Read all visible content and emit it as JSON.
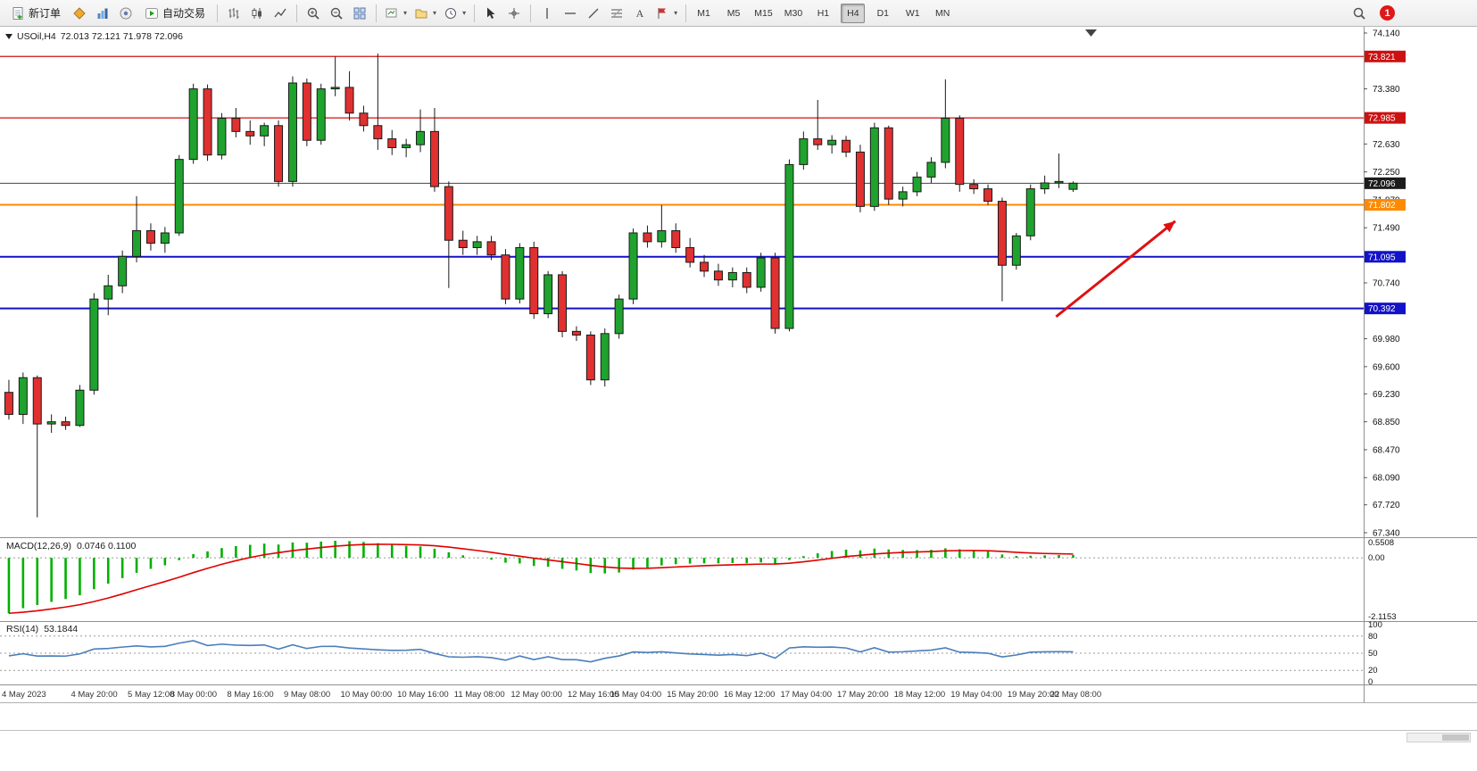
{
  "toolbar": {
    "new_order_label": "新订单",
    "auto_trading_label": "自动交易",
    "timeframes": [
      "M1",
      "M5",
      "M15",
      "M30",
      "H1",
      "H4",
      "D1",
      "W1",
      "MN"
    ],
    "active_timeframe": "H4",
    "notification_count": "1",
    "icon_names": [
      "new-order",
      "diamond",
      "charts",
      "help",
      "auto-trading-play",
      "bar-chart",
      "candlestick-chart",
      "line-chart",
      "zoom-in",
      "zoom-out",
      "tile-windows",
      "new-chart",
      "templates",
      "period",
      "cursor-arrow",
      "crosshair",
      "vertical-line",
      "horizontal-line",
      "trendline",
      "fibonacci",
      "text-tool",
      "arrows-tool",
      "search",
      "notification"
    ]
  },
  "chart_header": {
    "symbol": "USOil,H4",
    "ohlc": "72.013 72.121 71.978 72.096"
  },
  "price_axis": {
    "ticks": [
      "74.140",
      "73.380",
      "72.630",
      "72.250",
      "71.870",
      "71.490",
      "70.740",
      "69.980",
      "69.600",
      "69.230",
      "68.850",
      "68.470",
      "68.090",
      "67.720",
      "67.340"
    ],
    "tags": [
      {
        "price": 73.821,
        "label": "73.821",
        "color": "#cc1111",
        "line_color": "#d01010",
        "line_width": 1.2
      },
      {
        "price": 72.985,
        "label": "72.985",
        "color": "#cc1111",
        "line_color": "#d01010",
        "line_width": 1.2
      },
      {
        "price": 72.096,
        "label": "72.096",
        "color": "#1c1c1c",
        "line_color": "#444444",
        "line_width": 1
      },
      {
        "price": 71.802,
        "label": "71.802",
        "color": "#ff8a00",
        "line_color": "#ff8a00",
        "line_width": 2
      },
      {
        "price": 71.095,
        "label": "71.095",
        "color": "#1212c8",
        "line_color": "#1212c8",
        "line_width": 2
      },
      {
        "price": 70.392,
        "label": "70.392",
        "color": "#1212c8",
        "line_color": "#1212c8",
        "line_width": 2
      }
    ]
  },
  "macd_panel": {
    "name": "MACD(12,26,9)",
    "values": "0.0746 0.1100",
    "axis_labels": [
      "0.5508",
      "0.00",
      "-2.1153"
    ]
  },
  "rsi_panel": {
    "name": "RSI(14)",
    "value": "53.1844",
    "axis_labels": [
      "100",
      "80",
      "50",
      "20",
      "0"
    ]
  },
  "chart_data": {
    "type": "candlestick",
    "symbol": "USOil",
    "timeframe": "H4",
    "title": "USOil,H4",
    "price_range": [
      67.34,
      74.14
    ],
    "ohlc": [
      [
        69.25,
        69.42,
        68.88,
        68.95
      ],
      [
        68.95,
        69.52,
        68.82,
        69.45
      ],
      [
        69.45,
        69.48,
        67.55,
        68.82
      ],
      [
        68.82,
        68.95,
        68.7,
        68.85
      ],
      [
        68.85,
        68.92,
        68.74,
        68.8
      ],
      [
        68.8,
        69.35,
        68.78,
        69.28
      ],
      [
        69.28,
        70.6,
        69.22,
        70.52
      ],
      [
        70.52,
        70.85,
        70.3,
        70.7
      ],
      [
        70.7,
        71.18,
        70.6,
        71.1
      ],
      [
        71.1,
        71.92,
        71.02,
        71.45
      ],
      [
        71.45,
        71.55,
        71.18,
        71.28
      ],
      [
        71.28,
        71.5,
        71.15,
        71.42
      ],
      [
        71.42,
        72.48,
        71.38,
        72.42
      ],
      [
        72.42,
        73.45,
        72.36,
        73.38
      ],
      [
        73.38,
        73.44,
        72.4,
        72.48
      ],
      [
        72.48,
        73.05,
        72.42,
        72.98
      ],
      [
        72.98,
        73.12,
        72.72,
        72.8
      ],
      [
        72.8,
        72.95,
        72.62,
        72.74
      ],
      [
        72.74,
        72.92,
        72.6,
        72.88
      ],
      [
        72.88,
        72.95,
        72.05,
        72.12
      ],
      [
        72.12,
        73.55,
        72.05,
        73.46
      ],
      [
        73.46,
        73.52,
        72.6,
        72.68
      ],
      [
        72.68,
        73.45,
        72.62,
        73.38
      ],
      [
        73.38,
        73.82,
        73.28,
        73.4
      ],
      [
        73.4,
        73.62,
        72.95,
        73.05
      ],
      [
        73.05,
        73.15,
        72.8,
        72.88
      ],
      [
        72.88,
        73.86,
        72.55,
        72.7
      ],
      [
        72.7,
        72.82,
        72.48,
        72.58
      ],
      [
        72.58,
        72.7,
        72.45,
        72.62
      ],
      [
        72.62,
        73.1,
        72.52,
        72.8
      ],
      [
        72.8,
        73.12,
        71.98,
        72.05
      ],
      [
        72.05,
        72.12,
        70.67,
        71.32
      ],
      [
        71.32,
        71.45,
        71.12,
        71.22
      ],
      [
        71.22,
        71.38,
        71.12,
        71.3
      ],
      [
        71.3,
        71.38,
        71.05,
        71.12
      ],
      [
        71.12,
        71.2,
        70.45,
        70.52
      ],
      [
        70.52,
        71.28,
        70.46,
        71.22
      ],
      [
        71.22,
        71.3,
        70.25,
        70.32
      ],
      [
        70.32,
        70.9,
        70.26,
        70.85
      ],
      [
        70.85,
        70.9,
        70.0,
        70.08
      ],
      [
        70.08,
        70.15,
        69.95,
        70.03
      ],
      [
        70.03,
        70.08,
        69.35,
        69.42
      ],
      [
        69.42,
        70.12,
        69.33,
        70.05
      ],
      [
        70.05,
        70.58,
        69.98,
        70.52
      ],
      [
        70.52,
        71.48,
        70.45,
        71.42
      ],
      [
        71.42,
        71.52,
        71.22,
        71.3
      ],
      [
        71.3,
        71.8,
        71.22,
        71.45
      ],
      [
        71.45,
        71.55,
        71.15,
        71.22
      ],
      [
        71.22,
        71.35,
        70.95,
        71.02
      ],
      [
        71.02,
        71.12,
        70.82,
        70.9
      ],
      [
        70.9,
        71.0,
        70.7,
        70.78
      ],
      [
        70.78,
        70.95,
        70.68,
        70.88
      ],
      [
        70.88,
        70.95,
        70.6,
        70.68
      ],
      [
        70.68,
        71.15,
        70.62,
        71.08
      ],
      [
        71.08,
        71.15,
        70.05,
        70.12
      ],
      [
        70.12,
        72.42,
        70.08,
        72.35
      ],
      [
        72.35,
        72.8,
        72.28,
        72.7
      ],
      [
        72.7,
        73.23,
        72.55,
        72.62
      ],
      [
        72.62,
        72.75,
        72.5,
        72.68
      ],
      [
        72.68,
        72.74,
        72.45,
        72.52
      ],
      [
        72.52,
        72.62,
        71.7,
        71.78
      ],
      [
        71.78,
        72.92,
        71.72,
        72.85
      ],
      [
        72.85,
        72.88,
        71.8,
        71.88
      ],
      [
        71.88,
        72.05,
        71.78,
        71.98
      ],
      [
        71.98,
        72.25,
        71.92,
        72.18
      ],
      [
        72.18,
        72.45,
        72.1,
        72.38
      ],
      [
        72.38,
        73.51,
        72.3,
        72.98
      ],
      [
        72.98,
        73.02,
        71.98,
        72.08
      ],
      [
        72.08,
        72.15,
        71.95,
        72.02
      ],
      [
        72.02,
        72.08,
        71.8,
        71.85
      ],
      [
        71.85,
        71.9,
        70.49,
        70.98
      ],
      [
        70.98,
        71.42,
        70.92,
        71.38
      ],
      [
        71.38,
        72.08,
        71.32,
        72.02
      ],
      [
        72.02,
        72.2,
        71.95,
        72.1
      ],
      [
        72.1,
        72.5,
        72.03,
        72.12
      ],
      [
        72.013,
        72.121,
        71.978,
        72.096
      ]
    ],
    "time_labels": [
      {
        "index": 0,
        "label": "4 May 2023"
      },
      {
        "index": 5,
        "label": "4 May 20:00"
      },
      {
        "index": 9,
        "label": "5 May 12:00"
      },
      {
        "index": 12,
        "label": "8 May 00:00"
      },
      {
        "index": 16,
        "label": "8 May 16:00"
      },
      {
        "index": 20,
        "label": "9 May 08:00"
      },
      {
        "index": 24,
        "label": "10 May 00:00"
      },
      {
        "index": 28,
        "label": "10 May 16:00"
      },
      {
        "index": 32,
        "label": "11 May 08:00"
      },
      {
        "index": 36,
        "label": "12 May 00:00"
      },
      {
        "index": 40,
        "label": "12 May 16:00"
      },
      {
        "index": 43,
        "label": "15 May 04:00"
      },
      {
        "index": 47,
        "label": "15 May 20:00"
      },
      {
        "index": 51,
        "label": "16 May 12:00"
      },
      {
        "index": 55,
        "label": "17 May 04:00"
      },
      {
        "index": 59,
        "label": "17 May 20:00"
      },
      {
        "index": 63,
        "label": "18 May 12:00"
      },
      {
        "index": 67,
        "label": "19 May 04:00"
      },
      {
        "index": 71,
        "label": "19 May 20:00"
      },
      {
        "index": 74,
        "label": "22 May 08:00"
      }
    ],
    "horizontal_levels": [
      73.821,
      72.985,
      72.096,
      71.802,
      71.095,
      70.392
    ],
    "trend_arrow": {
      "from_bar": 73.8,
      "from_price": 70.28,
      "to_bar": 82.2,
      "to_price": 71.58,
      "color": "#e01010"
    },
    "indicators": {
      "macd": {
        "params": [
          12,
          26,
          9
        ],
        "display_values": [
          0.0746,
          0.11
        ],
        "scale": [
          -2.1153,
          0.5508
        ],
        "histogram_color": "#00b000",
        "signal_color": "#e00000"
      },
      "rsi": {
        "period": 14,
        "display_value": 53.1844,
        "levels": [
          80,
          50,
          20
        ],
        "scale": [
          0,
          100
        ],
        "line_color": "#4a7ebb"
      }
    },
    "colors": {
      "bull": "#1fa32e",
      "bear": "#e03030",
      "outline": "#1a1a1a"
    }
  }
}
